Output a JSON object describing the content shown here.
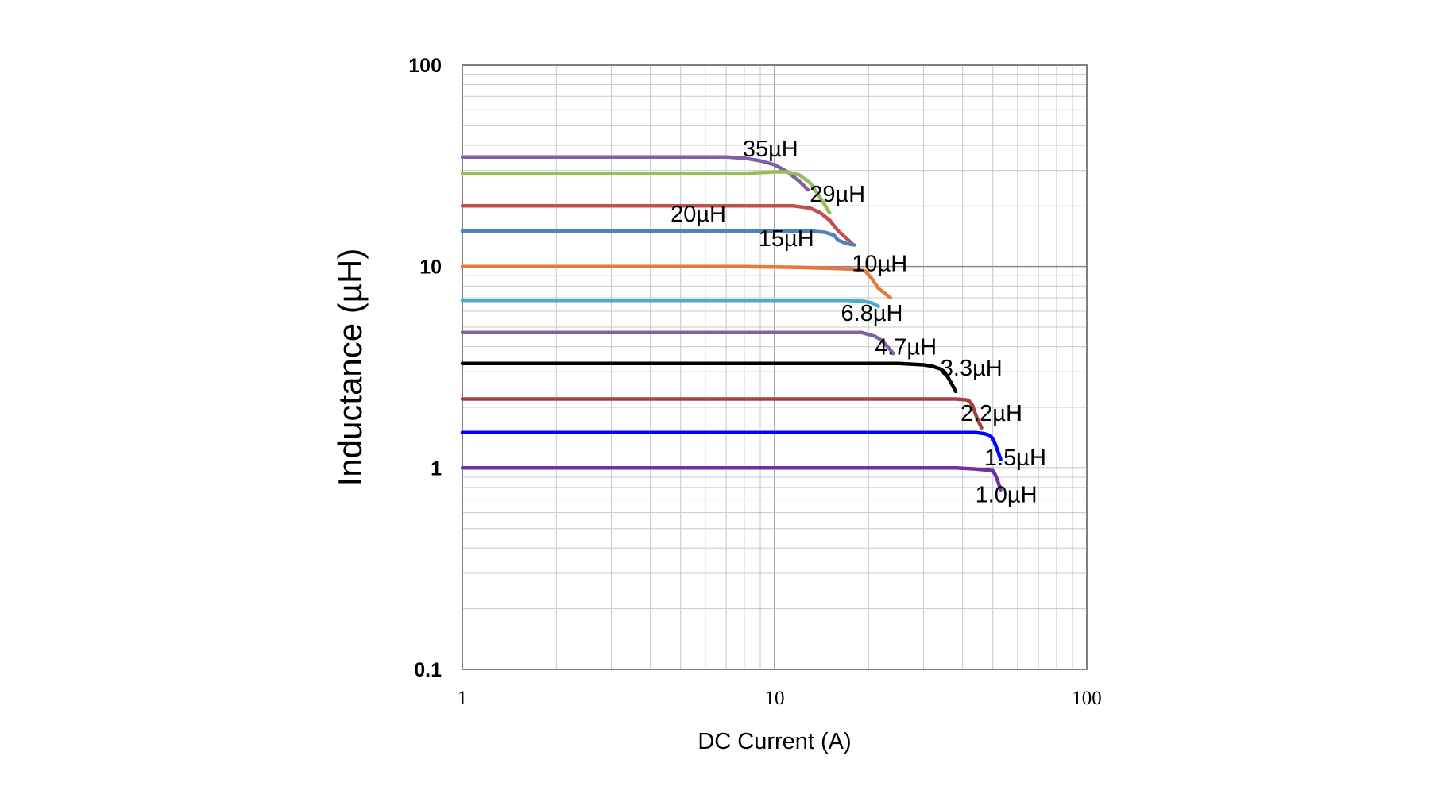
{
  "chart_data": {
    "type": "line",
    "title": "",
    "xlabel": "DC Current (A)",
    "ylabel": "Inductance (µH)",
    "x_scale": "log",
    "y_scale": "log",
    "xlim": [
      1,
      100
    ],
    "ylim": [
      0.1,
      100
    ],
    "x_ticks": [
      "1",
      "10",
      "100"
    ],
    "y_ticks": [
      "0.1",
      "1",
      "10",
      "100"
    ],
    "grid": true,
    "legend": "none",
    "series": [
      {
        "name": "35µH",
        "color": "#7f5fa8",
        "points": [
          [
            1,
            35
          ],
          [
            6,
            35
          ],
          [
            7,
            35
          ],
          [
            8,
            34.5
          ],
          [
            9,
            33.5
          ],
          [
            10,
            32
          ],
          [
            11,
            29.5
          ],
          [
            12,
            26.5
          ],
          [
            12.8,
            24
          ]
        ],
        "label_at": [
          9.7,
          38.5
        ]
      },
      {
        "name": "29µH",
        "color": "#9bbb59",
        "points": [
          [
            1,
            29
          ],
          [
            8,
            29
          ],
          [
            10,
            29.5
          ],
          [
            11,
            29.5
          ],
          [
            12,
            28.5
          ],
          [
            13,
            26
          ],
          [
            14,
            22
          ],
          [
            15,
            18.5
          ]
        ],
        "label_at": [
          15.9,
          23
        ]
      },
      {
        "name": "20µH",
        "color": "#c0504d",
        "points": [
          [
            1,
            20
          ],
          [
            10,
            20
          ],
          [
            11.5,
            20
          ],
          [
            13,
            19.5
          ],
          [
            14,
            18.5
          ],
          [
            15,
            17
          ],
          [
            16,
            15
          ],
          [
            17,
            13.8
          ],
          [
            17.7,
            13
          ]
        ],
        "label_at": [
          5.7,
          18.3
        ]
      },
      {
        "name": "15µH",
        "color": "#4f81bd",
        "points": [
          [
            1,
            15
          ],
          [
            13,
            15
          ],
          [
            14.5,
            14.8
          ],
          [
            15.5,
            14.3
          ],
          [
            16,
            13.5
          ],
          [
            17,
            13
          ],
          [
            18,
            12.8
          ]
        ],
        "label_at": [
          10.9,
          13.8
        ]
      },
      {
        "name": "10µH",
        "color": "#e07b39",
        "points": [
          [
            1,
            10
          ],
          [
            8,
            10
          ],
          [
            12,
            9.9
          ],
          [
            15,
            9.8
          ],
          [
            18,
            9.7
          ],
          [
            19.5,
            9.5
          ],
          [
            20.5,
            8.7
          ],
          [
            21.5,
            7.8
          ],
          [
            23.5,
            7
          ]
        ],
        "label_at": [
          21.7,
          10.4
        ]
      },
      {
        "name": "6.8µH",
        "color": "#4bacc6",
        "points": [
          [
            1,
            6.8
          ],
          [
            17,
            6.8
          ],
          [
            18.5,
            6.75
          ],
          [
            19.5,
            6.7
          ],
          [
            20.5,
            6.6
          ],
          [
            21.5,
            6.35
          ]
        ],
        "label_at": [
          20.5,
          5.9
        ]
      },
      {
        "name": "4.7µH",
        "color": "#8064a2",
        "points": [
          [
            1,
            4.7
          ],
          [
            19,
            4.7
          ],
          [
            20,
            4.6
          ],
          [
            21,
            4.5
          ],
          [
            22,
            4.3
          ],
          [
            23,
            4.0
          ],
          [
            24,
            3.7
          ]
        ],
        "label_at": [
          26.3,
          4.0
        ]
      },
      {
        "name": "3.3µH",
        "color": "#000000",
        "points": [
          [
            1,
            3.3
          ],
          [
            25,
            3.3
          ],
          [
            30,
            3.25
          ],
          [
            32,
            3.2
          ],
          [
            34,
            3.1
          ],
          [
            35,
            3.0
          ],
          [
            36,
            2.8
          ],
          [
            37,
            2.6
          ],
          [
            38,
            2.4
          ]
        ],
        "label_at": [
          42.7,
          3.15
        ]
      },
      {
        "name": "2.2µH",
        "color": "#a5423f",
        "points": [
          [
            1,
            2.2
          ],
          [
            38,
            2.2
          ],
          [
            41,
            2.18
          ],
          [
            42,
            2.15
          ],
          [
            43,
            2.05
          ],
          [
            44,
            1.85
          ],
          [
            45,
            1.7
          ],
          [
            46,
            1.58
          ]
        ],
        "label_at": [
          49.5,
          1.88
        ]
      },
      {
        "name": "1.5µH",
        "color": "#0000ff",
        "points": [
          [
            1,
            1.5
          ],
          [
            44,
            1.5
          ],
          [
            47,
            1.48
          ],
          [
            49,
            1.45
          ],
          [
            50,
            1.4
          ],
          [
            51,
            1.3
          ],
          [
            52,
            1.2
          ],
          [
            53,
            1.1
          ]
        ],
        "label_at": [
          59,
          1.13
        ]
      },
      {
        "name": "1.0µH",
        "color": "#7030a0",
        "points": [
          [
            1,
            1.0
          ],
          [
            38,
            1.0
          ],
          [
            43,
            0.99
          ],
          [
            47,
            0.98
          ],
          [
            50,
            0.97
          ],
          [
            51,
            0.92
          ],
          [
            52,
            0.85
          ],
          [
            53,
            0.78
          ]
        ],
        "label_at": [
          55.2,
          0.74
        ]
      }
    ]
  }
}
